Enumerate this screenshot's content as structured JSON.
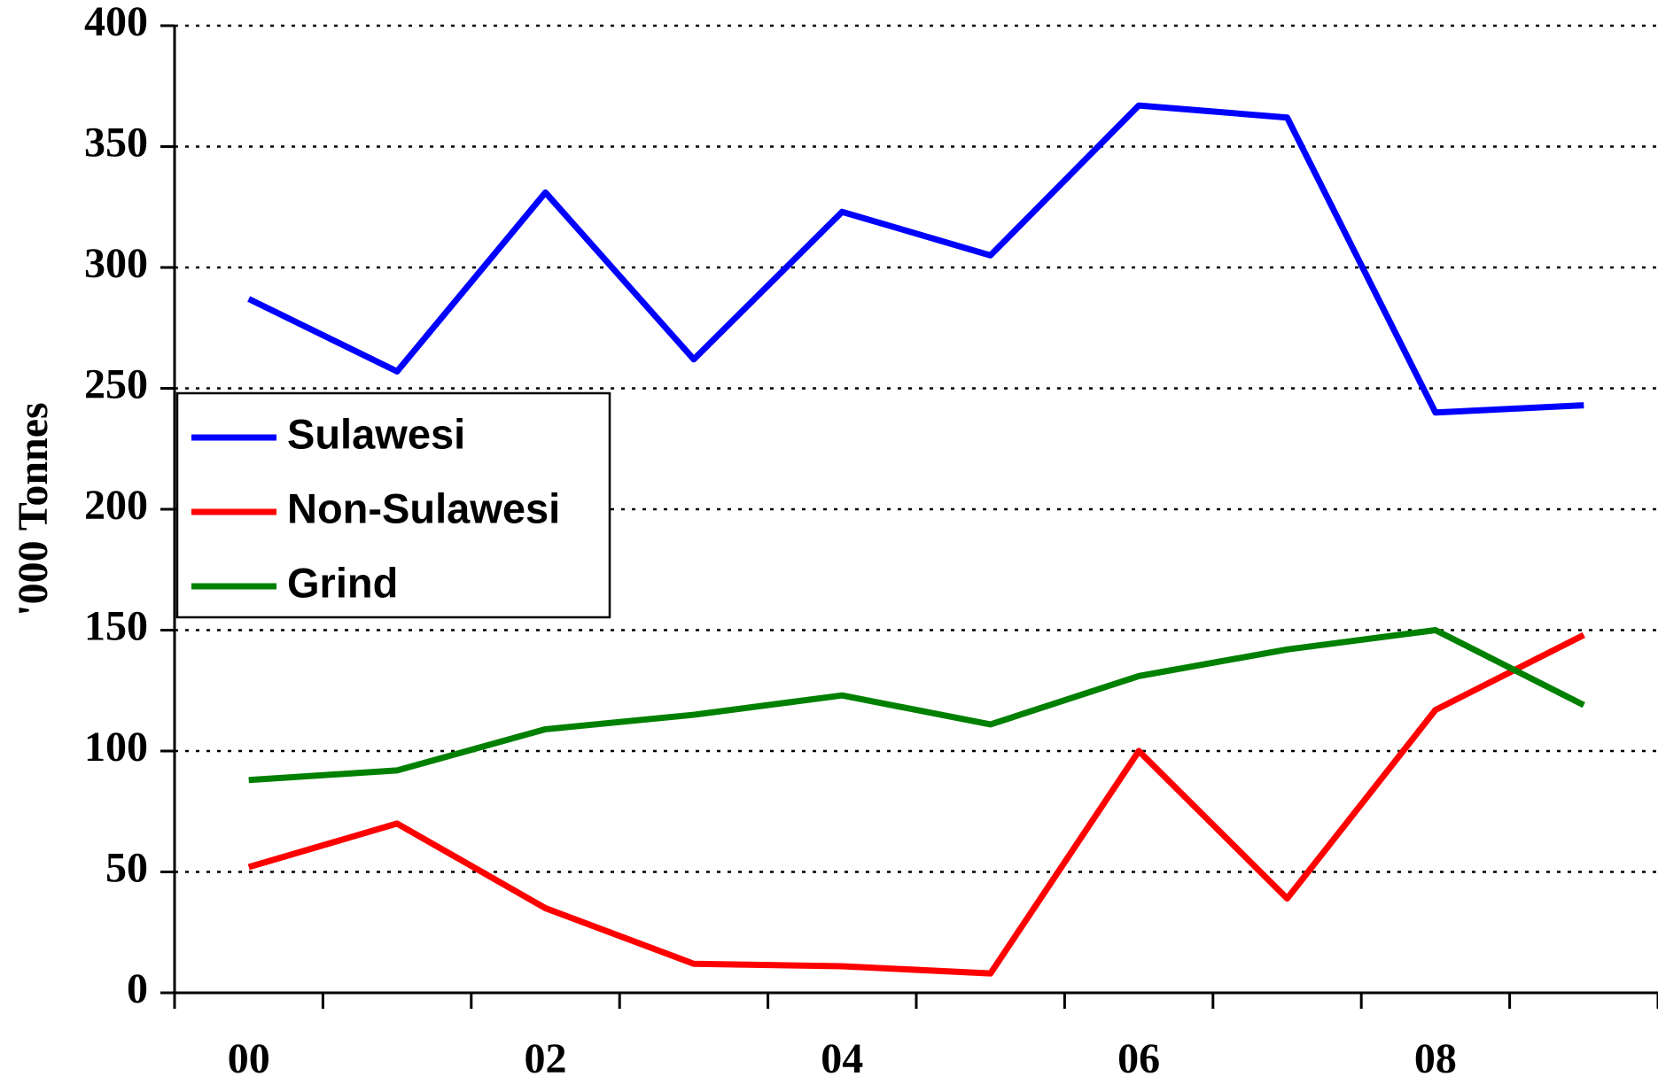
{
  "chart_data": {
    "type": "line",
    "y_label": "'000 Tonnes",
    "categories": [
      "00",
      null,
      "02",
      null,
      "04",
      null,
      "06",
      null,
      "08",
      null
    ],
    "series": [
      {
        "name": "Sulawesi",
        "color": "#0000ff",
        "values": [
          287,
          257,
          331,
          262,
          323,
          305,
          367,
          362,
          240,
          243
        ]
      },
      {
        "name": "Non-Sulawesi",
        "color": "#ff0000",
        "values": [
          52,
          70,
          35,
          12,
          11,
          8,
          100,
          39,
          117,
          148
        ]
      },
      {
        "name": "Grind",
        "color": "#008000",
        "values": [
          88,
          92,
          109,
          115,
          123,
          111,
          131,
          142,
          150,
          119
        ]
      }
    ],
    "ylim": [
      0,
      400
    ],
    "yticks": [
      0,
      50,
      100,
      150,
      200,
      250,
      300,
      350,
      400
    ],
    "grid": true,
    "legend": "left"
  }
}
